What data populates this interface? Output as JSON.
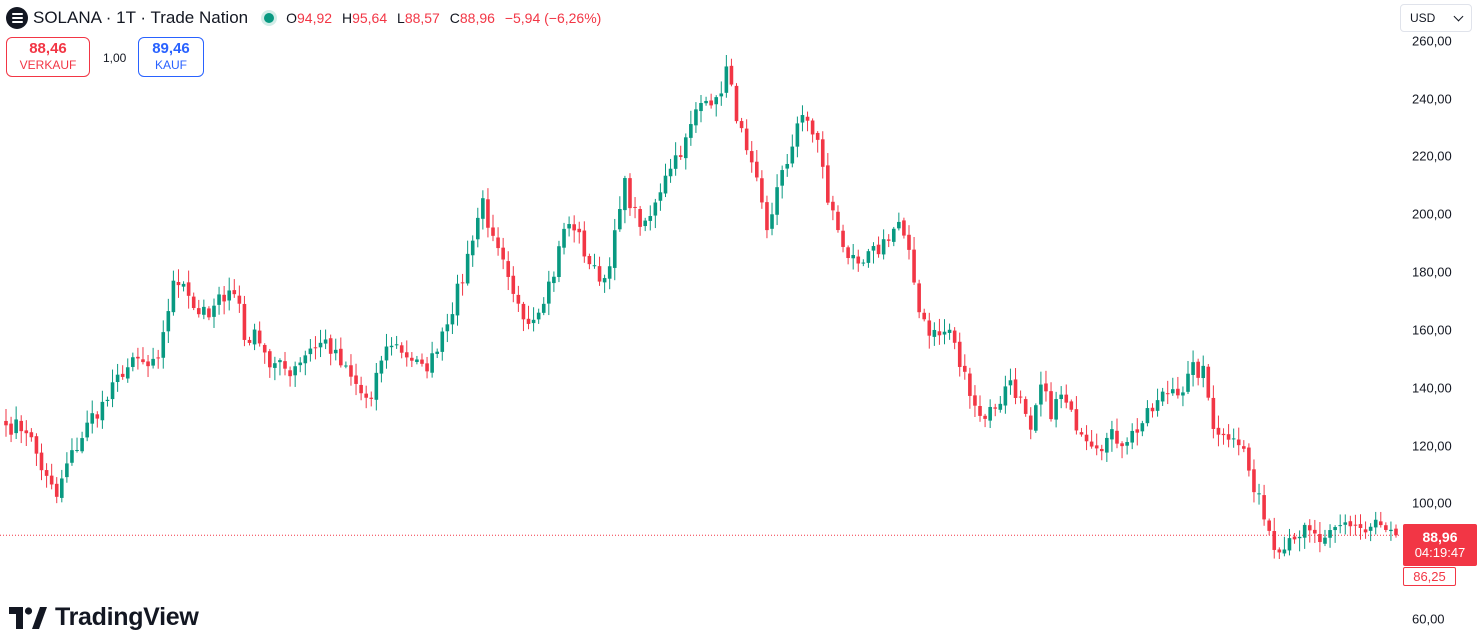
{
  "header": {
    "title": "SOLANA · 1T · Trade Nation",
    "ohlc": [
      {
        "label": "O",
        "value": "94,92"
      },
      {
        "label": "H",
        "value": "95,64"
      },
      {
        "label": "L",
        "value": "88,57"
      },
      {
        "label": "C",
        "value": "88,96"
      }
    ],
    "change": "−5,94 (−6,26%)"
  },
  "trade": {
    "sell_price": "88,46",
    "sell_label": "VERKAUF",
    "quantity": "1,00",
    "buy_price": "89,46",
    "buy_label": "KAUF"
  },
  "currency": "USD",
  "last_price": {
    "value": "88,96",
    "countdown": "04:19:47"
  },
  "low_marker": "86,25",
  "brand": "TradingView",
  "colors": {
    "up": "#089981",
    "down": "#f23645",
    "last_line": "#f23645"
  },
  "icons": {
    "symbol": "solana-logo-icon",
    "status": "market-open-dot-icon",
    "currency": "chevron-down-icon",
    "brand": "tradingview-logo-icon"
  },
  "chart_data": {
    "type": "candlestick",
    "ylim": [
      60,
      262
    ],
    "y_ticks": [
      {
        "v": 260,
        "label": "260,00"
      },
      {
        "v": 240,
        "label": "240,00"
      },
      {
        "v": 220,
        "label": "220,00"
      },
      {
        "v": 200,
        "label": "200,00"
      },
      {
        "v": 180,
        "label": "180,00"
      },
      {
        "v": 160,
        "label": "160,00"
      },
      {
        "v": 140,
        "label": "140,00"
      },
      {
        "v": 120,
        "label": "120,00"
      },
      {
        "v": 100,
        "label": "100,00"
      },
      {
        "v": 60,
        "label": "60,00"
      }
    ],
    "last_close": 88.96,
    "close_path": [
      [
        0,
        127
      ],
      [
        4,
        126
      ],
      [
        8,
        108
      ],
      [
        10,
        102
      ],
      [
        12,
        113
      ],
      [
        14,
        120
      ],
      [
        17,
        130
      ],
      [
        20,
        136
      ],
      [
        23,
        146
      ],
      [
        26,
        149
      ],
      [
        28,
        147
      ],
      [
        30,
        148
      ],
      [
        31,
        160
      ],
      [
        33,
        175
      ],
      [
        35,
        178
      ],
      [
        37,
        168
      ],
      [
        40,
        164
      ],
      [
        42,
        170
      ],
      [
        44,
        175
      ],
      [
        46,
        169
      ],
      [
        47,
        157
      ],
      [
        50,
        158
      ],
      [
        52,
        148
      ],
      [
        56,
        146
      ],
      [
        58,
        150
      ],
      [
        60,
        154
      ],
      [
        63,
        156
      ],
      [
        66,
        148
      ],
      [
        68,
        143
      ],
      [
        70,
        138
      ],
      [
        72,
        135
      ],
      [
        74,
        150
      ],
      [
        76,
        156
      ],
      [
        78,
        153
      ],
      [
        80,
        150
      ],
      [
        82,
        146
      ],
      [
        84,
        150
      ],
      [
        86,
        160
      ],
      [
        88,
        168
      ],
      [
        90,
        178
      ],
      [
        92,
        193
      ],
      [
        94,
        205
      ],
      [
        96,
        190
      ],
      [
        98,
        182
      ],
      [
        100,
        170
      ],
      [
        102,
        165
      ],
      [
        104,
        165
      ],
      [
        106,
        172
      ],
      [
        108,
        180
      ],
      [
        110,
        195
      ],
      [
        112,
        196
      ],
      [
        114,
        187
      ],
      [
        116,
        180
      ],
      [
        118,
        178
      ],
      [
        120,
        192
      ],
      [
        122,
        210
      ],
      [
        124,
        200
      ],
      [
        126,
        195
      ],
      [
        128,
        203
      ],
      [
        130,
        215
      ],
      [
        132,
        220
      ],
      [
        134,
        225
      ],
      [
        136,
        235
      ],
      [
        138,
        242
      ],
      [
        140,
        238
      ],
      [
        142,
        250
      ],
      [
        144,
        235
      ],
      [
        146,
        220
      ],
      [
        148,
        210
      ],
      [
        150,
        195
      ],
      [
        152,
        208
      ],
      [
        154,
        218
      ],
      [
        156,
        232
      ],
      [
        158,
        232
      ],
      [
        160,
        225
      ],
      [
        162,
        205
      ],
      [
        164,
        195
      ],
      [
        166,
        186
      ],
      [
        168,
        180
      ],
      [
        170,
        185
      ],
      [
        172,
        188
      ],
      [
        174,
        193
      ],
      [
        176,
        197
      ],
      [
        178,
        185
      ],
      [
        180,
        168
      ],
      [
        182,
        160
      ],
      [
        184,
        158
      ],
      [
        186,
        160
      ],
      [
        188,
        148
      ],
      [
        190,
        140
      ],
      [
        192,
        130
      ],
      [
        194,
        132
      ],
      [
        196,
        136
      ],
      [
        198,
        143
      ],
      [
        200,
        135
      ],
      [
        202,
        123
      ],
      [
        204,
        140
      ],
      [
        206,
        132
      ],
      [
        208,
        137
      ],
      [
        210,
        130
      ],
      [
        212,
        126
      ],
      [
        214,
        122
      ],
      [
        216,
        121
      ],
      [
        218,
        123
      ],
      [
        220,
        122
      ],
      [
        222,
        124
      ],
      [
        225,
        130
      ],
      [
        228,
        137
      ],
      [
        230,
        140
      ],
      [
        232,
        140
      ],
      [
        234,
        146
      ],
      [
        236,
        145
      ],
      [
        238,
        128
      ],
      [
        240,
        123
      ],
      [
        242,
        125
      ],
      [
        244,
        118
      ],
      [
        246,
        104
      ],
      [
        248,
        97
      ],
      [
        250,
        85
      ],
      [
        252,
        87
      ],
      [
        254,
        90
      ],
      [
        256,
        90
      ],
      [
        258,
        88
      ],
      [
        260,
        86
      ],
      [
        262,
        90
      ],
      [
        264,
        93
      ],
      [
        266,
        93
      ],
      [
        268,
        90
      ],
      [
        270,
        93
      ],
      [
        272,
        90
      ],
      [
        274,
        88.96
      ]
    ]
  }
}
